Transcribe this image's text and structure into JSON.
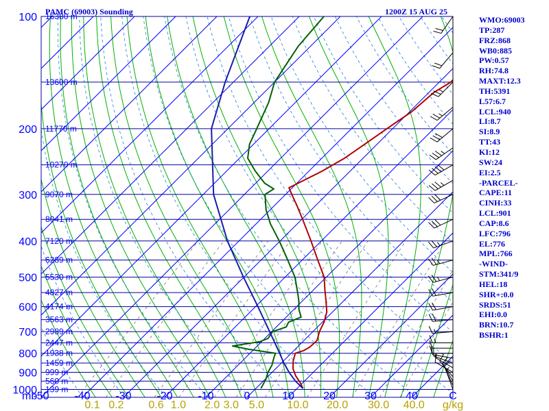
{
  "header": {
    "station": "PAMC (69003) Sounding",
    "time": "1200Z 15 AUG 25"
  },
  "colors": {
    "isobar": "#0000a0",
    "isotherm": "#0000ff",
    "dry_adiabat": "#1e7bd8",
    "moist_adiabat": "#00b000",
    "mixing_ratio": "#707070",
    "temperature": "#b00000",
    "dewpoint": "#006000",
    "parcel": "#1a1ab0",
    "wind": "#000000",
    "axis_text": "#0000ff",
    "mixing_text": "#b8a000"
  },
  "indices": [
    "WMO:69003",
    "TP:287",
    "FRZ:868",
    "WB0:885",
    "PW:0.57",
    "RH:74.8",
    "MAXT:12.3",
    "TH:5391",
    "L57:6.7",
    "LCL:940",
    "LI:8.7",
    "SI:8.9",
    "TT:43",
    "KI:12",
    "SW:24",
    "EI:2.5",
    "-PARCEL-",
    "CAPE:11",
    "CINH:33",
    "LCL:901",
    "CAP:8.6",
    "LFC:796",
    "EL:776",
    "MPL:766",
    "-WIND-",
    "STM:341/9",
    "HEL:18",
    "SHR+:0.0",
    "SRDS:51",
    "EHI:0.0",
    "BRN:10.7",
    "BSHR:1"
  ],
  "chart_data": {
    "type": "line",
    "subtype": "skew-T log-P",
    "title": "PAMC (69003) Sounding",
    "time": "1200Z 15 AUG 25",
    "xlabel": "C",
    "ylabel": "mb",
    "xlim": [
      -50,
      50
    ],
    "ylim": [
      1000,
      100
    ],
    "yscale": "log",
    "pressure_ticks": [
      100,
      200,
      300,
      400,
      500,
      600,
      700,
      800,
      900,
      1000
    ],
    "pressure_tick_labels": [
      "100",
      "200",
      "300",
      "400",
      "500",
      "600",
      "700",
      "800",
      "900",
      "1000"
    ],
    "temperature_ticks": [
      -50,
      -40,
      -30,
      -20,
      -10,
      0,
      10,
      20,
      30,
      40
    ],
    "temperature_tick_labels": [
      "-50",
      "-40",
      "-30",
      "-20",
      "-10",
      "0",
      "10",
      "20",
      "30",
      "40"
    ],
    "mixing_ratio_ticks": [
      {
        "label": "0.1",
        "t_at_1000": -39.5
      },
      {
        "label": "0.2",
        "t_at_1000": -33.7
      },
      {
        "label": "0.6",
        "t_at_1000": -24
      },
      {
        "label": "1.0",
        "t_at_1000": -18.6
      },
      {
        "label": "2.0",
        "t_at_1000": -10.4
      },
      {
        "label": "3.0",
        "t_at_1000": -5.8
      },
      {
        "label": "5.0",
        "t_at_1000": 0.4
      },
      {
        "label": "10.0",
        "t_at_1000": 10.4
      },
      {
        "label": "20.0",
        "t_at_1000": 20
      },
      {
        "label": "30.0",
        "t_at_1000": 30
      },
      {
        "label": "40.0",
        "t_at_1000": 38.6
      }
    ],
    "units_label": "g/kg",
    "height_labels": [
      {
        "p": 100,
        "label": "16380 m"
      },
      {
        "p": 150,
        "label": "13600 m"
      },
      {
        "p": 200,
        "label": "11770 m"
      },
      {
        "p": 250,
        "label": "10270 m"
      },
      {
        "p": 300,
        "label": "9070 m"
      },
      {
        "p": 350,
        "label": "8041 m"
      },
      {
        "p": 400,
        "label": "7120 m"
      },
      {
        "p": 450,
        "label": "6289 m"
      },
      {
        "p": 500,
        "label": "5530 m"
      },
      {
        "p": 550,
        "label": "4827 m"
      },
      {
        "p": 600,
        "label": "4174 m"
      },
      {
        "p": 650,
        "label": "3563 m"
      },
      {
        "p": 700,
        "label": "2989 m"
      },
      {
        "p": 750,
        "label": "2447 m"
      },
      {
        "p": 800,
        "label": "1938 m"
      },
      {
        "p": 850,
        "label": "1459 m"
      },
      {
        "p": 900,
        "label": "999 m"
      },
      {
        "p": 950,
        "label": "560 m"
      },
      {
        "p": 1000,
        "label": "139 m"
      }
    ],
    "series": [
      {
        "name": "temperature",
        "p": [
          994,
          960,
          920,
          880,
          840,
          800,
          787,
          770,
          740,
          700,
          660,
          620,
          580,
          540,
          500,
          450,
          400,
          350,
          320,
          300,
          288,
          280,
          260,
          240,
          220,
          200,
          180,
          160,
          150,
          140,
          120,
          100
        ],
        "t": [
          11.4,
          9.4,
          6.6,
          4.2,
          2.4,
          1,
          2.4,
          3,
          3.2,
          1.6,
          0.4,
          -1.4,
          -4.2,
          -7.3,
          -10.5,
          -16.2,
          -22.5,
          -29.8,
          -34.8,
          -38.5,
          -40.8,
          -39.7,
          -36.8,
          -34.5,
          -33,
          -31.4,
          -29.5,
          -28.8,
          -27.2,
          -27.4,
          -24.2,
          -22.5
        ]
      },
      {
        "name": "dewpoint",
        "p": [
          994,
          940,
          900,
          860,
          820,
          800,
          780,
          765,
          745,
          730,
          700,
          680,
          660,
          640,
          610,
          580,
          550,
          500,
          450,
          400,
          360,
          330,
          300,
          290,
          280,
          260,
          240,
          220,
          200,
          170,
          150,
          120,
          100
        ],
        "t": [
          1.2,
          0.2,
          -1,
          -1.8,
          -3.2,
          -3.8,
          -11.5,
          -16,
          -10.5,
          -9.2,
          -9.8,
          -7.6,
          -8.2,
          -6.4,
          -8.8,
          -10.8,
          -13.2,
          -17.6,
          -23.5,
          -30.2,
          -36.5,
          -41,
          -45,
          -44.2,
          -47.8,
          -53,
          -58,
          -61,
          -63,
          -66.5,
          -70,
          -73,
          -74
        ]
      }
    ],
    "parcel": {
      "name": "parcel",
      "p": [
        994,
        950,
        901,
        850,
        800,
        700,
        600,
        500,
        400,
        300,
        200,
        150,
        100
      ],
      "t": [
        11.4,
        7.8,
        4.2,
        0.6,
        -2.8,
        -10.5,
        -19.4,
        -30.1,
        -42.8,
        -57.5,
        -74,
        -82,
        -92
      ]
    },
    "winds": [
      {
        "p": 1000,
        "dir": 340,
        "spd": 5
      },
      {
        "p": 975,
        "dir": 335,
        "spd": 10
      },
      {
        "p": 950,
        "dir": 330,
        "spd": 10
      },
      {
        "p": 925,
        "dir": 320,
        "spd": 10
      },
      {
        "p": 900,
        "dir": 300,
        "spd": 10
      },
      {
        "p": 875,
        "dir": 300,
        "spd": 5
      },
      {
        "p": 850,
        "dir": 290,
        "spd": 10
      },
      {
        "p": 825,
        "dir": 280,
        "spd": 10
      },
      {
        "p": 800,
        "dir": 270,
        "spd": 10
      },
      {
        "p": 775,
        "dir": 270,
        "spd": 10
      },
      {
        "p": 750,
        "dir": 270,
        "spd": 15
      },
      {
        "p": 700,
        "dir": 265,
        "spd": 15
      },
      {
        "p": 650,
        "dir": 265,
        "spd": 20
      },
      {
        "p": 600,
        "dir": 260,
        "spd": 20
      },
      {
        "p": 550,
        "dir": 260,
        "spd": 20
      },
      {
        "p": 500,
        "dir": 255,
        "spd": 25
      },
      {
        "p": 450,
        "dir": 255,
        "spd": 25
      },
      {
        "p": 400,
        "dir": 250,
        "spd": 25
      },
      {
        "p": 350,
        "dir": 245,
        "spd": 30
      },
      {
        "p": 300,
        "dir": 245,
        "spd": 30
      },
      {
        "p": 275,
        "dir": 240,
        "spd": 35
      },
      {
        "p": 250,
        "dir": 240,
        "spd": 40
      },
      {
        "p": 225,
        "dir": 235,
        "spd": 35
      },
      {
        "p": 200,
        "dir": 230,
        "spd": 30
      },
      {
        "p": 175,
        "dir": 230,
        "spd": 25
      },
      {
        "p": 150,
        "dir": 225,
        "spd": 25
      },
      {
        "p": 125,
        "dir": 220,
        "spd": 20
      },
      {
        "p": 100,
        "dir": 215,
        "spd": 20
      }
    ]
  }
}
